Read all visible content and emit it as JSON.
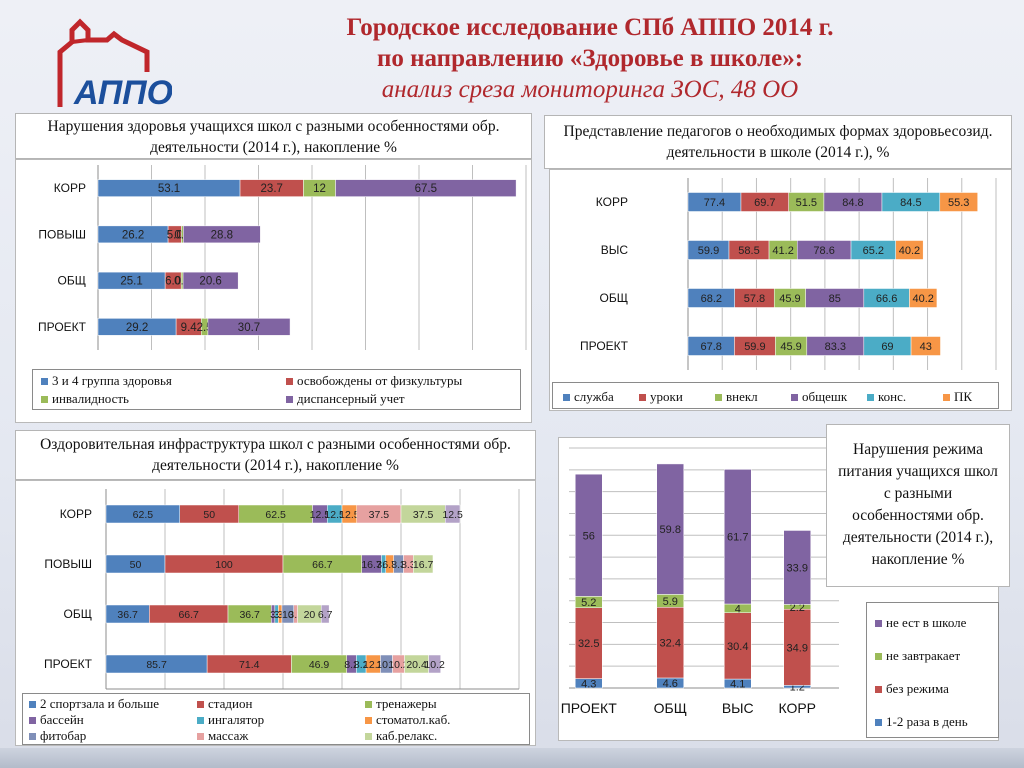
{
  "header": {
    "title_line1": "Городское исследование СПб АППО 2014 г.",
    "title_line2": "по направлению «Здоровье в школе»:",
    "subtitle": "анализ среза мониторинга ЗОС, 48 ОО",
    "logo_text": "АППО"
  },
  "colors": {
    "blue": "#4f81bd",
    "red": "#c0504d",
    "green": "#9bbb59",
    "purple": "#8064a2",
    "teal": "#4bacc6",
    "orange": "#f79646",
    "slate": "#7f8fb8",
    "pink": "#e6a1a0",
    "lightgreen": "#c3d69b"
  },
  "chart_data": [
    {
      "id": "chart1",
      "type": "bar",
      "orientation": "horizontal",
      "stacked": true,
      "title": "Нарушения здоровья учащихся школ с разными особенностями обр. деятельности (2014 г.), накопление  %",
      "categories": [
        "КОРР",
        "ПОВЫШ",
        "ОБЩ",
        "ПРОЕКТ"
      ],
      "xlim": [
        0,
        160
      ],
      "series": [
        {
          "name": "3 и 4 группа здоровья",
          "color": "#4f81bd",
          "values": [
            53.1,
            26.2,
            25.1,
            29.2
          ]
        },
        {
          "name": "освобождены от физкультуры",
          "color": "#c0504d",
          "values": [
            23.7,
            5,
            6,
            9.4
          ]
        },
        {
          "name": "инвалидность",
          "color": "#9bbb59",
          "values": [
            12,
            0.7,
            0.7,
            2.5
          ]
        },
        {
          "name": "диспансерный учет",
          "color": "#8064a2",
          "values": [
            67.5,
            28.8,
            20.6,
            30.7
          ]
        }
      ],
      "labels": [
        [
          "53.1",
          "23.7",
          "12",
          "67.5"
        ],
        [
          "26.2",
          "5.0",
          "0.7",
          "28.8"
        ],
        [
          "25.1",
          "6.0",
          "0.7",
          "20.6"
        ],
        [
          "29.2",
          "9.4",
          "2.5",
          "30.7"
        ]
      ],
      "legend": "bottom"
    },
    {
      "id": "chart2",
      "type": "bar",
      "orientation": "horizontal",
      "stacked": true,
      "title": "Представление педагогов о необходимых формах здоровьесозид. деятельности в школе (2014 г.),  %",
      "categories": [
        "КОРР",
        "ВЫС",
        "ОБЩ",
        "ПРОЕКТ"
      ],
      "xlim": [
        0,
        450
      ],
      "series": [
        {
          "name": "служба",
          "color": "#4f81bd",
          "values": [
            77.4,
            59.9,
            68.2,
            67.8
          ]
        },
        {
          "name": "уроки",
          "color": "#c0504d",
          "values": [
            69.7,
            58.5,
            57.8,
            59.9
          ]
        },
        {
          "name": "внекл",
          "color": "#9bbb59",
          "values": [
            51.5,
            41.2,
            45.9,
            45.9
          ]
        },
        {
          "name": "общешк",
          "color": "#8064a2",
          "values": [
            84.8,
            78.6,
            85,
            83.3
          ]
        },
        {
          "name": "конс.",
          "color": "#4bacc6",
          "values": [
            84.5,
            65.2,
            66.6,
            69
          ]
        },
        {
          "name": "ПК",
          "color": "#f79646",
          "values": [
            55.3,
            40.2,
            40.2,
            43
          ]
        }
      ],
      "legend": "bottom"
    },
    {
      "id": "chart3",
      "type": "bar",
      "orientation": "horizontal",
      "stacked": true,
      "title": "Оздоровительная инфраструктура школ с разными особенностями обр. деятельности (2014 г.), накопление  %",
      "categories": [
        "КОРР",
        "ПОВЫШ",
        "ОБЩ",
        "ПРОЕКТ"
      ],
      "xlim": [
        0,
        350
      ],
      "xticks": [
        "0",
        "50",
        "100",
        "150",
        "200",
        "250",
        "300",
        "350"
      ],
      "series": [
        {
          "name": "2 спортзала и больше",
          "color": "#4f81bd",
          "values": [
            62.5,
            50,
            36.7,
            85.7
          ]
        },
        {
          "name": "стадион",
          "color": "#c0504d",
          "values": [
            50,
            100,
            66.7,
            71.4
          ]
        },
        {
          "name": "тренажеры",
          "color": "#9bbb59",
          "values": [
            62.5,
            66.7,
            36.7,
            46.9
          ]
        },
        {
          "name": "бассейн",
          "color": "#8064a2",
          "values": [
            12.5,
            16.7,
            3,
            8.2
          ]
        },
        {
          "name": "ингалятор",
          "color": "#4bacc6",
          "values": [
            12.5,
            3.7,
            3,
            8.2
          ]
        },
        {
          "name": "стоматол.каб.",
          "color": "#f79646",
          "values": [
            12.5,
            6.7,
            3,
            12.2
          ]
        },
        {
          "name": "фитобар",
          "color": "#7f8fb8",
          "values": [
            0,
            8.3,
            10,
            10.2
          ]
        },
        {
          "name": "массаж",
          "color": "#e6a1a0",
          "values": [
            37.5,
            8.3,
            3.3,
            10.2
          ]
        },
        {
          "name": "каб.релакс.",
          "color": "#c3d69b",
          "values": [
            37.5,
            16.7,
            20,
            20.4
          ]
        },
        {
          "name": "",
          "color": "#b3a2c7",
          "values": [
            12.5,
            0,
            6.7,
            10.2
          ]
        }
      ],
      "labels": [
        [
          "62.5",
          "50",
          "62.5",
          "12.5",
          "12.5",
          "12.5",
          "",
          "37.5",
          "37.5",
          "12.5"
        ],
        [
          "50",
          "100",
          "66.7",
          "16.7",
          "3.7",
          "6.7",
          "8.3",
          "8.3",
          "16.7",
          ""
        ],
        [
          "36.7",
          "66.7",
          "36.7",
          "3",
          "3",
          "3",
          "10",
          "3.3",
          "20",
          "6.7"
        ],
        [
          "85.7",
          "71.4",
          "46.9",
          "8.2",
          "8.2",
          "12.2",
          "10.2",
          "10.2",
          "20.4",
          "10.2"
        ]
      ],
      "legend": "bottom"
    },
    {
      "id": "chart4",
      "type": "bar",
      "orientation": "vertical",
      "stacked": true,
      "title": "Нарушения режима питания учащихся школ с разными особенностями обр. деятельности (2014 г.), накопление  %",
      "categories": [
        "ПРОЕКТ",
        "ОБЩ",
        "ВЫС",
        "КОРР"
      ],
      "ylim": [
        0,
        110
      ],
      "series": [
        {
          "name": "1-2 раза в день",
          "color": "#4f81bd",
          "values": [
            4.3,
            4.6,
            4.1,
            1.2
          ]
        },
        {
          "name": "без режима",
          "color": "#c0504d",
          "values": [
            32.5,
            32.4,
            30.4,
            34.9
          ]
        },
        {
          "name": "не завтракает",
          "color": "#9bbb59",
          "values": [
            5.2,
            5.9,
            4,
            2.2
          ]
        },
        {
          "name": "не ест в школе",
          "color": "#8064a2",
          "values": [
            56,
            59.8,
            61.7,
            33.9
          ]
        }
      ],
      "legend": "right"
    }
  ]
}
